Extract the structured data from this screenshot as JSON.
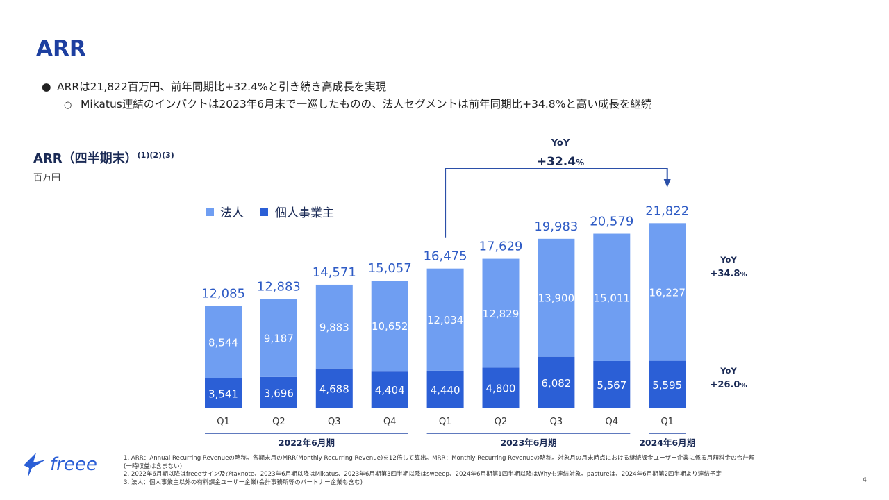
{
  "page": {
    "title": "ARR",
    "bullet1": "ARRは21,822百万円、前年同期比+32.4%と引き続き高成長を実現",
    "bullet2": "Mikatus連結のインパクトは2023年6月末で一巡したものの、法人セグメントは前年同期比+34.8%と高い成長を継続",
    "bullet1_marker": "●",
    "bullet2_marker": "○",
    "chart_title": "ARR（四半期末）",
    "chart_title_sup": "(1)(2)(3)",
    "chart_unit": "百万円",
    "page_number": "4",
    "logo_text": "freee"
  },
  "footnotes": [
    "1. ARR：Annual Recurring Revenueの略称。各期末月のMRR(Monthly Recurring Revenue)を12倍して算出。MRR：Monthly Recurring Revenueの略称。対象月の月末時点における継続課金ユーザー企業に係る月額料金の合計額",
    "(一時収益は含まない)",
    "2. 2022年6月期以降はfreeeサイン及びtaxnote、2023年6月期以降はMikatus、2023年6月期第3四半期以降はsweeep、2024年6月期第1四半期以降はWhyも連結対象。pastureは、2024年6月期第2四半期より連結予定",
    "3. 法人：個人事業主以外の有料課金ユーザー企業(会計事務所等のパートナー企業も含む)"
  ],
  "annotations": {
    "yoy_total_label": "YoY",
    "yoy_total_value": "+32.4",
    "yoy_total_pct": "%",
    "yoy_corp_label": "YoY",
    "yoy_corp_value": "+34.8",
    "yoy_corp_pct": "%",
    "yoy_indiv_label": "YoY",
    "yoy_indiv_value": "+26.0",
    "yoy_indiv_pct": "%"
  },
  "colors": {
    "corporate": "#6f9ef2",
    "individual": "#2b5fd6",
    "title": "#1d3fa0",
    "arrow": "#2b4fa8",
    "total_label": "#2e5bc5"
  },
  "chart_data": {
    "type": "bar",
    "stacked": true,
    "categories": [
      "Q1",
      "Q2",
      "Q3",
      "Q4",
      "Q1",
      "Q2",
      "Q3",
      "Q4",
      "Q1"
    ],
    "groups": [
      {
        "label": "2022年6月期",
        "span": [
          0,
          3
        ]
      },
      {
        "label": "2023年6月期",
        "span": [
          4,
          7
        ]
      },
      {
        "label": "2024年6月期",
        "span": [
          8,
          8
        ]
      }
    ],
    "series": [
      {
        "name": "個人事業主",
        "values": [
          3541,
          3696,
          4688,
          4404,
          4440,
          4800,
          6082,
          5567,
          5595
        ]
      },
      {
        "name": "法人",
        "values": [
          8544,
          9187,
          9883,
          10652,
          12034,
          12829,
          13900,
          15011,
          16227
        ]
      }
    ],
    "totals": [
      12085,
      12883,
      14571,
      15057,
      16475,
      17629,
      19983,
      20579,
      21822
    ],
    "legend": [
      "法人",
      "個人事業主"
    ],
    "legend_position": "top-left",
    "title": "ARR（四半期末）",
    "ylabel": "百万円"
  }
}
